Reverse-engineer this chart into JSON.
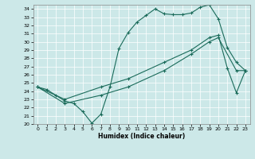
{
  "xlabel": "Humidex (Indice chaleur)",
  "xlim": [
    -0.5,
    23.5
  ],
  "ylim": [
    20,
    34.5
  ],
  "yticks": [
    20,
    21,
    22,
    23,
    24,
    25,
    26,
    27,
    28,
    29,
    30,
    31,
    32,
    33,
    34
  ],
  "xticks": [
    0,
    1,
    2,
    3,
    4,
    5,
    6,
    7,
    8,
    9,
    10,
    11,
    12,
    13,
    14,
    15,
    16,
    17,
    18,
    19,
    20,
    21,
    22,
    23
  ],
  "bg_color": "#cce8e8",
  "line_color": "#1a6b5a",
  "line1_x": [
    0,
    1,
    2,
    3,
    4,
    5,
    6,
    7,
    8,
    9,
    10,
    11,
    12,
    13,
    14,
    15,
    16,
    17,
    18,
    19,
    20,
    21,
    22,
    23
  ],
  "line1_y": [
    24.5,
    24.2,
    23.5,
    22.8,
    22.5,
    21.5,
    20.1,
    21.2,
    24.5,
    29.2,
    31.1,
    32.4,
    33.2,
    34.0,
    33.4,
    33.3,
    33.3,
    33.5,
    34.2,
    34.5,
    32.8,
    29.3,
    27.5,
    26.5
  ],
  "line2_x": [
    0,
    3,
    7,
    10,
    14,
    17,
    19,
    20,
    21,
    22,
    23
  ],
  "line2_y": [
    24.5,
    23.0,
    24.5,
    25.5,
    27.5,
    29.0,
    30.5,
    30.8,
    26.8,
    23.8,
    26.5
  ],
  "line3_x": [
    0,
    3,
    7,
    10,
    14,
    17,
    19,
    20,
    22,
    23
  ],
  "line3_y": [
    24.5,
    22.5,
    23.5,
    24.5,
    26.5,
    28.5,
    30.0,
    30.5,
    26.5,
    26.5
  ]
}
